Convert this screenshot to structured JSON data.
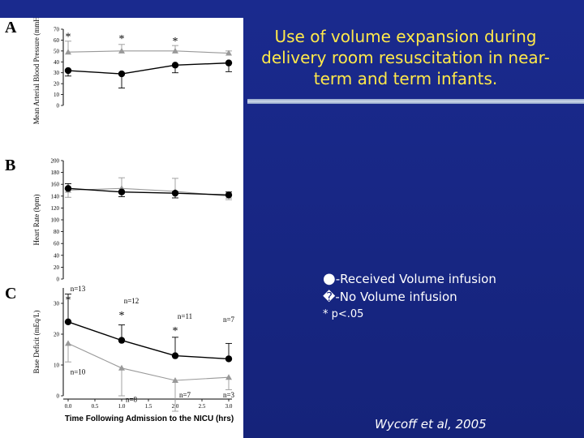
{
  "slide": {
    "title": "Use of volume expansion during delivery room resuscitation in near-term and term infants.",
    "legend": {
      "received": "-Received Volume infusion",
      "no_volume": "-No Volume infusion",
      "significance": "* p<.05",
      "received_marker": "●",
      "no_volume_marker": "�"
    },
    "citation": "Wycoff et al, 2005",
    "colors": {
      "background": "#1b2a8a",
      "title": "#ffe94a",
      "received": "#000000",
      "no_volume": "#999999"
    }
  },
  "chart_data": [
    {
      "panel": "A",
      "type": "line",
      "ylabel": "Mean Arterial Blood Pressure (mmHg)",
      "ylim": [
        0,
        70
      ],
      "yticks": [
        0,
        10,
        20,
        30,
        40,
        50,
        60,
        70
      ],
      "x": [
        0.0,
        1.0,
        2.0,
        3.0
      ],
      "series": [
        {
          "name": "Received Volume infusion",
          "values": [
            32,
            29,
            37,
            39
          ],
          "err": [
            5,
            13,
            7,
            8
          ]
        },
        {
          "name": "No Volume infusion",
          "values": [
            49,
            50,
            50,
            48
          ],
          "err": [
            10,
            6,
            5,
            2
          ]
        }
      ],
      "annotations": [
        {
          "text": "*",
          "x": 0.0,
          "y": 60
        },
        {
          "text": "*",
          "x": 1.0,
          "y": 58
        },
        {
          "text": "*",
          "x": 2.0,
          "y": 56
        }
      ]
    },
    {
      "panel": "B",
      "type": "line",
      "ylabel": "Heart Rate (bpm)",
      "ylim": [
        0,
        200
      ],
      "yticks": [
        0,
        20,
        40,
        60,
        80,
        100,
        120,
        140,
        160,
        180,
        200
      ],
      "x": [
        0.0,
        1.0,
        2.0,
        3.0
      ],
      "series": [
        {
          "name": "Received Volume infusion",
          "values": [
            153,
            147,
            145,
            142
          ],
          "err": [
            8,
            8,
            8,
            5
          ]
        },
        {
          "name": "No Volume infusion",
          "values": [
            150,
            153,
            148,
            140
          ],
          "err": [
            12,
            18,
            22,
            6
          ]
        }
      ],
      "annotations": []
    },
    {
      "panel": "C",
      "type": "line",
      "ylabel": "Base Deficit (mEq/L)",
      "xlabel": "Time Following Admission to the NICU (hrs)",
      "ylim": [
        0,
        35
      ],
      "yticks": [
        0,
        10,
        20,
        30
      ],
      "xlim": [
        0.0,
        3.0
      ],
      "xticks": [
        "0.0",
        "0.5",
        "1.0",
        "1.5",
        "2.0",
        "2.5",
        "3.0"
      ],
      "x": [
        0.0,
        1.0,
        2.0,
        3.0
      ],
      "series": [
        {
          "name": "Received Volume infusion",
          "values": [
            24,
            18,
            13,
            12
          ],
          "err": [
            9,
            5,
            6,
            5
          ]
        },
        {
          "name": "No Volume infusion",
          "values": [
            17,
            9,
            5,
            6
          ],
          "err": [
            6,
            9,
            10,
            4
          ]
        }
      ],
      "annotations": [
        {
          "text": "n=13",
          "x": 0.0,
          "y": 34
        },
        {
          "text": "n=12",
          "x": 1.0,
          "y": 30
        },
        {
          "text": "n=11",
          "x": 2.0,
          "y": 25
        },
        {
          "text": "n=7",
          "x": 3.0,
          "y": 24
        },
        {
          "text": "n=10",
          "x": 0.0,
          "y": 7
        },
        {
          "text": "n=8",
          "x": 1.0,
          "y": -2
        },
        {
          "text": "n=7",
          "x": 2.0,
          "y": -0.5
        },
        {
          "text": "n=3",
          "x": 3.0,
          "y": -0.5
        },
        {
          "text": "*",
          "x": 0.0,
          "y": 30
        },
        {
          "text": "*",
          "x": 1.0,
          "y": 25
        },
        {
          "text": "*",
          "x": 2.0,
          "y": 20
        }
      ]
    }
  ]
}
